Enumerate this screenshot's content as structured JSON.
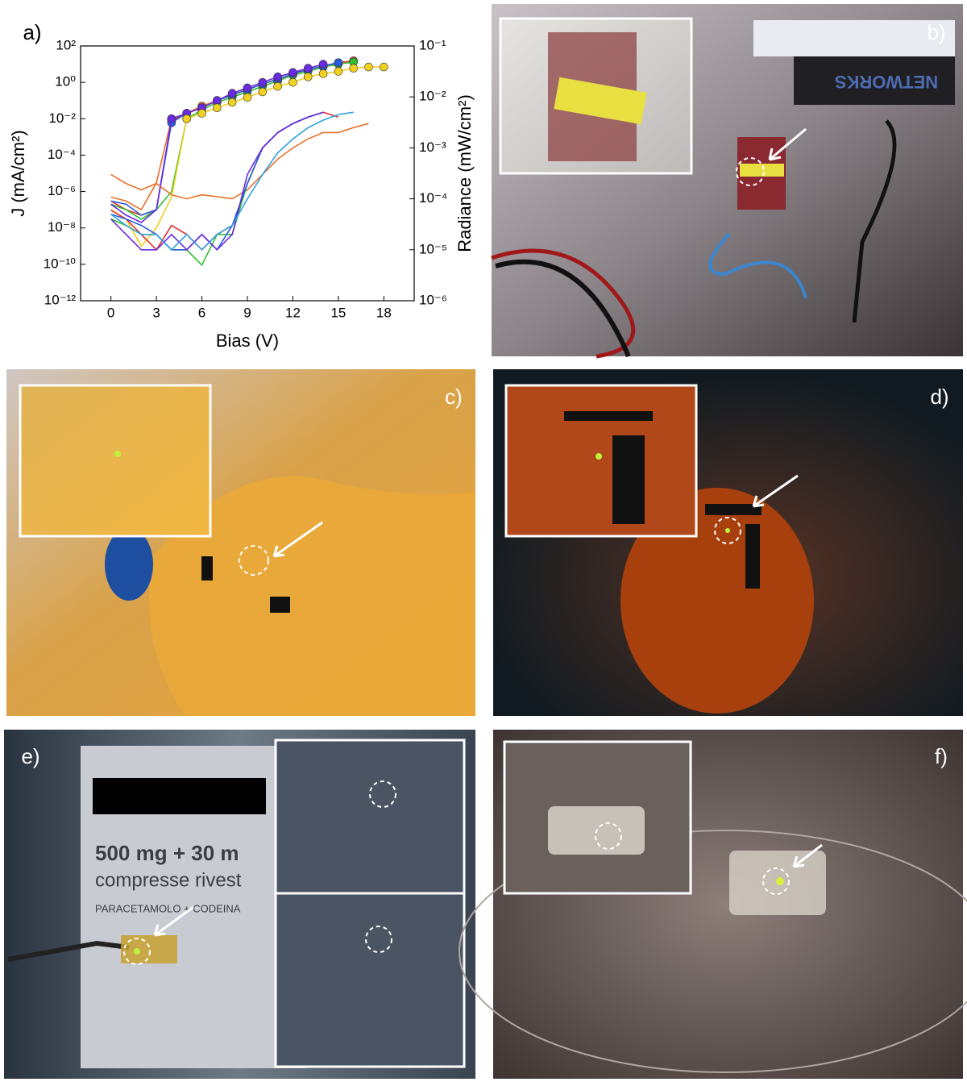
{
  "chart_data": {
    "type": "line",
    "panel_label": "a)",
    "xlabel": "Bias (V)",
    "ylabel": "J (mA/cm²)",
    "y2label": "Radiance (mW/cm²)",
    "x": [
      0,
      1,
      2,
      3,
      4,
      5,
      6,
      7,
      8,
      9,
      10,
      11,
      12,
      13,
      14,
      15,
      16,
      17,
      18
    ],
    "xlim": [
      -2,
      20
    ],
    "xticks": [
      0,
      3,
      6,
      9,
      12,
      15,
      18
    ],
    "ylog": true,
    "ylim": [
      1e-12,
      100
    ],
    "yticks": [
      {
        "value": 100,
        "label": "10²"
      },
      {
        "value": 1,
        "label": "10⁰"
      },
      {
        "value": 0.01,
        "label": "10⁻²"
      },
      {
        "value": 0.0001,
        "label": "10⁻⁴"
      },
      {
        "value": 1e-06,
        "label": "10⁻⁶"
      },
      {
        "value": 1e-08,
        "label": "10⁻⁸"
      },
      {
        "value": 1e-10,
        "label": "10⁻¹⁰"
      },
      {
        "value": 1e-12,
        "label": "10⁻¹²"
      }
    ],
    "y2log": true,
    "y2lim": [
      1e-06,
      0.1
    ],
    "y2ticks": [
      {
        "value": 0.1,
        "label": "10⁻¹"
      },
      {
        "value": 0.01,
        "label": "10⁻²"
      },
      {
        "value": 0.001,
        "label": "10⁻³"
      },
      {
        "value": 0.0001,
        "label": "10⁻⁴"
      },
      {
        "value": 1e-05,
        "label": "10⁻⁵"
      },
      {
        "value": 1e-06,
        "label": "10⁻⁶"
      }
    ],
    "series": [
      {
        "color": "#e8702a",
        "markers": true,
        "values": [
          5e-07,
          3e-07,
          1e-07,
          3e-06,
          0.01,
          0.02,
          0.05,
          0.1,
          0.2,
          0.4,
          0.8,
          1.5,
          3,
          5,
          8,
          12,
          15,
          null,
          null
        ]
      },
      {
        "color": "#e0302a",
        "markers": true,
        "values": [
          3e-07,
          1e-07,
          5e-08,
          1e-07,
          0.008,
          0.02,
          0.04,
          0.1,
          0.2,
          0.4,
          0.8,
          1.5,
          3,
          5,
          8,
          12,
          15,
          null,
          null
        ]
      },
      {
        "color": "#2ec02e",
        "markers": true,
        "values": [
          2e-07,
          1e-07,
          3e-08,
          1e-07,
          1e-06,
          0.01,
          0.03,
          0.08,
          0.15,
          0.3,
          0.6,
          1.2,
          2.5,
          4,
          7,
          10,
          13,
          null,
          null
        ]
      },
      {
        "color": "#2a5ce0",
        "markers": true,
        "values": [
          3e-07,
          2e-07,
          5e-08,
          1e-07,
          0.006,
          0.02,
          0.04,
          0.1,
          0.2,
          0.4,
          0.8,
          1.5,
          3,
          5,
          8,
          12,
          null,
          null,
          null
        ]
      },
      {
        "color": "#6a2ae0",
        "markers": true,
        "values": [
          2e-07,
          5e-08,
          2e-08,
          1e-07,
          0.01,
          0.02,
          0.04,
          0.1,
          0.25,
          0.5,
          1,
          2,
          3.5,
          6,
          10,
          null,
          null,
          null,
          null
        ]
      },
      {
        "color": "#f0d020",
        "markers": true,
        "values": [
          1e-07,
          3e-08,
          1e-09,
          1e-08,
          5e-07,
          0.01,
          0.02,
          0.04,
          0.08,
          0.15,
          0.3,
          0.6,
          1,
          2,
          3,
          4,
          6,
          7,
          7
        ]
      },
      {
        "color": "#e8702a",
        "axis": "y2",
        "values": [
          0.0003,
          0.0002,
          0.00015,
          0.0002,
          0.00012,
          0.0001,
          0.00012,
          0.00011,
          0.0001,
          0.00015,
          0.0003,
          0.0006,
          0.001,
          0.0015,
          0.002,
          0.002,
          0.0025,
          0.003,
          null
        ]
      },
      {
        "color": "#e0302a",
        "axis": "y2",
        "values": [
          6e-05,
          4e-05,
          2e-05,
          1e-05,
          3e-05,
          2e-05,
          1e-05,
          2e-05,
          3e-05,
          0.0002,
          0.001,
          0.002,
          0.003,
          0.004,
          0.005,
          0.004,
          null,
          null,
          null
        ]
      },
      {
        "color": "#2ec02e",
        "axis": "y2",
        "values": [
          4e-05,
          3e-05,
          2e-05,
          2e-05,
          1e-05,
          1e-05,
          5e-06,
          2e-05,
          2e-05,
          0.0002,
          0.001,
          0.002,
          0.003,
          0.004,
          0.005,
          null,
          null,
          null,
          null
        ]
      },
      {
        "color": "#2a5ce0",
        "axis": "y2",
        "values": [
          5e-05,
          4e-05,
          3e-05,
          2e-05,
          1e-05,
          1e-05,
          2e-05,
          1e-05,
          3e-05,
          0.0002,
          0.001,
          0.002,
          0.003,
          0.004,
          0.005,
          null,
          null,
          null,
          null
        ]
      },
      {
        "color": "#6a2ae0",
        "axis": "y2",
        "values": [
          4e-05,
          2e-05,
          1e-05,
          1e-05,
          2e-05,
          1e-05,
          2e-05,
          1e-05,
          2e-05,
          0.0003,
          0.001,
          0.002,
          0.003,
          0.004,
          0.005,
          null,
          null,
          null,
          null
        ]
      },
      {
        "color": "#30a0e0",
        "axis": "y2",
        "values": [
          5e-05,
          3e-05,
          2e-05,
          2e-05,
          1e-05,
          2e-05,
          1e-05,
          2e-05,
          3e-05,
          0.0001,
          0.0003,
          0.0008,
          0.0015,
          0.0025,
          0.0035,
          0.0045,
          0.005,
          null,
          null
        ]
      }
    ]
  },
  "photos": [
    {
      "label": "b)",
      "texts": [
        "NETWORKS"
      ]
    },
    {
      "label": "c)"
    },
    {
      "label": "d)"
    },
    {
      "label": "e)",
      "texts": [
        "500 mg + 30 m",
        "compresse rivest",
        "PARACETAMOLO + CODEINA"
      ]
    },
    {
      "label": "f)"
    }
  ]
}
